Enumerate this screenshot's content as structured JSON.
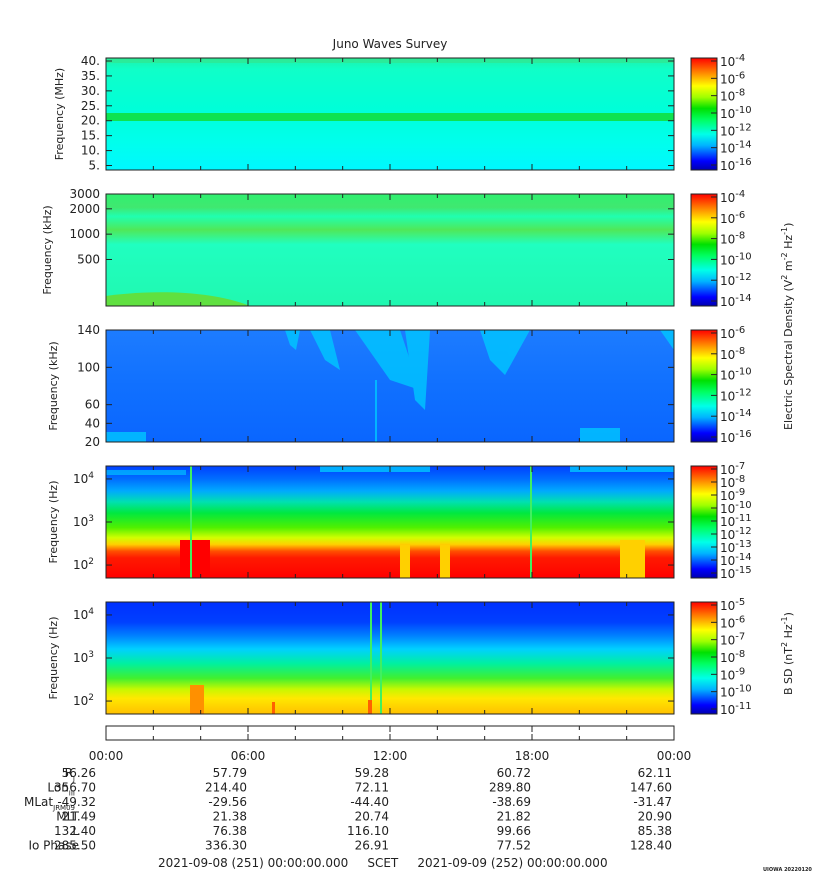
{
  "title": "Juno Waves Survey",
  "chart_data": {
    "type": "heatmap",
    "time_axis": {
      "start": "2021-09-08 00:00",
      "end": "2021-09-09 00:00",
      "tick_labels": [
        "00:00",
        "06:00",
        "12:00",
        "18:00",
        "00:00"
      ]
    },
    "panels": [
      {
        "ylabel": "Frequency (MHz)",
        "yscale": "linear",
        "ylim": [
          3.5,
          41
        ],
        "yticks": [
          {
            "v": 5,
            "label": "5."
          },
          {
            "v": 10,
            "label": "10."
          },
          {
            "v": 15,
            "label": "15."
          },
          {
            "v": 20,
            "label": "20."
          },
          {
            "v": 25,
            "label": "25."
          },
          {
            "v": 30,
            "label": "30."
          },
          {
            "v": 35,
            "label": "35."
          },
          {
            "v": 40,
            "label": "40."
          }
        ],
        "colorbar": {
          "exponents": [
            -4,
            -6,
            -8,
            -10,
            -12,
            -14,
            -16
          ]
        }
      },
      {
        "ylabel": "Frequency (kHz)",
        "yscale": "log",
        "ylim": [
          140,
          3000
        ],
        "yticks": [
          {
            "v": 500,
            "label": "500"
          },
          {
            "v": 1000,
            "label": "1000"
          },
          {
            "v": 2000,
            "label": "2000"
          },
          {
            "v": 3000,
            "label": "3000"
          }
        ],
        "colorbar": {
          "exponents": [
            -4,
            -6,
            -8,
            -10,
            -12,
            -14
          ]
        }
      },
      {
        "ylabel": "Frequency (kHz)",
        "yscale": "linear",
        "ylim": [
          20,
          140
        ],
        "yticks": [
          {
            "v": 20,
            "label": "20"
          },
          {
            "v": 40,
            "label": "40"
          },
          {
            "v": 60,
            "label": "60"
          },
          {
            "v": 100,
            "label": "100"
          },
          {
            "v": 140,
            "label": "140"
          }
        ],
        "colorbar": {
          "exponents": [
            -6,
            -8,
            -10,
            -12,
            -14,
            -16
          ]
        }
      },
      {
        "ylabel": "Frequency (Hz)",
        "yscale": "log",
        "ylim": [
          50,
          20000
        ],
        "yticks": [
          {
            "v": 100,
            "label": "10",
            "sup": "2"
          },
          {
            "v": 1000,
            "label": "10",
            "sup": "3"
          },
          {
            "v": 10000,
            "label": "10",
            "sup": "4"
          }
        ],
        "colorbar": {
          "exponents": [
            -7,
            -8,
            -9,
            -10,
            -11,
            -12,
            -13,
            -14,
            -15
          ]
        }
      },
      {
        "ylabel": "Frequency (Hz)",
        "yscale": "log",
        "ylim": [
          50,
          20000
        ],
        "yticks": [
          {
            "v": 100,
            "label": "10",
            "sup": "2"
          },
          {
            "v": 1000,
            "label": "10",
            "sup": "3"
          },
          {
            "v": 10000,
            "label": "10",
            "sup": "4"
          }
        ],
        "colorbar": {
          "exponents": [
            -5,
            -6,
            -7,
            -8,
            -9,
            -10,
            -11
          ]
        }
      }
    ],
    "colorbar_labels": {
      "electric": "Electric Spectral Density (V",
      "electric_unit_tail": " m",
      "electric_unit_tail2": " Hz",
      "magnetic": "B SD (nT",
      "magnetic_tail": " Hz",
      "sup_2": "2",
      "sup_neg2": "-2",
      "sup_neg1": "-1",
      "close": ")"
    }
  },
  "ephemeris": {
    "rows": [
      {
        "label": "R",
        "sub": "J",
        "values": [
          "56.26",
          "57.79",
          "59.28",
          "60.72",
          "62.11"
        ]
      },
      {
        "label": "Lon",
        "sub": "III",
        "values": [
          "356.70",
          "214.40",
          "72.11",
          "289.80",
          "147.60"
        ]
      },
      {
        "label": "MLat",
        "sub": "JRM09",
        "values": [
          "-49.32",
          "-29.56",
          "-44.40",
          "-38.69",
          "-31.47"
        ]
      },
      {
        "label": "MLT",
        "sub": "",
        "values": [
          "21.49",
          "21.38",
          "20.74",
          "21.82",
          "20.90"
        ]
      },
      {
        "label": "L",
        "sub": "",
        "values": [
          "132.40",
          "76.38",
          "116.10",
          "99.66",
          "85.38"
        ]
      },
      {
        "label": "Io Phase",
        "sub": "",
        "values": [
          "285.50",
          "336.30",
          "26.91",
          "77.52",
          "128.40"
        ]
      }
    ]
  },
  "footer": {
    "start": "2021-09-08 (251) 00:00:00.000",
    "mid": "SCET",
    "end": "2021-09-09 (252) 00:00:00.000"
  },
  "stamp": "UIOWA 20220120"
}
